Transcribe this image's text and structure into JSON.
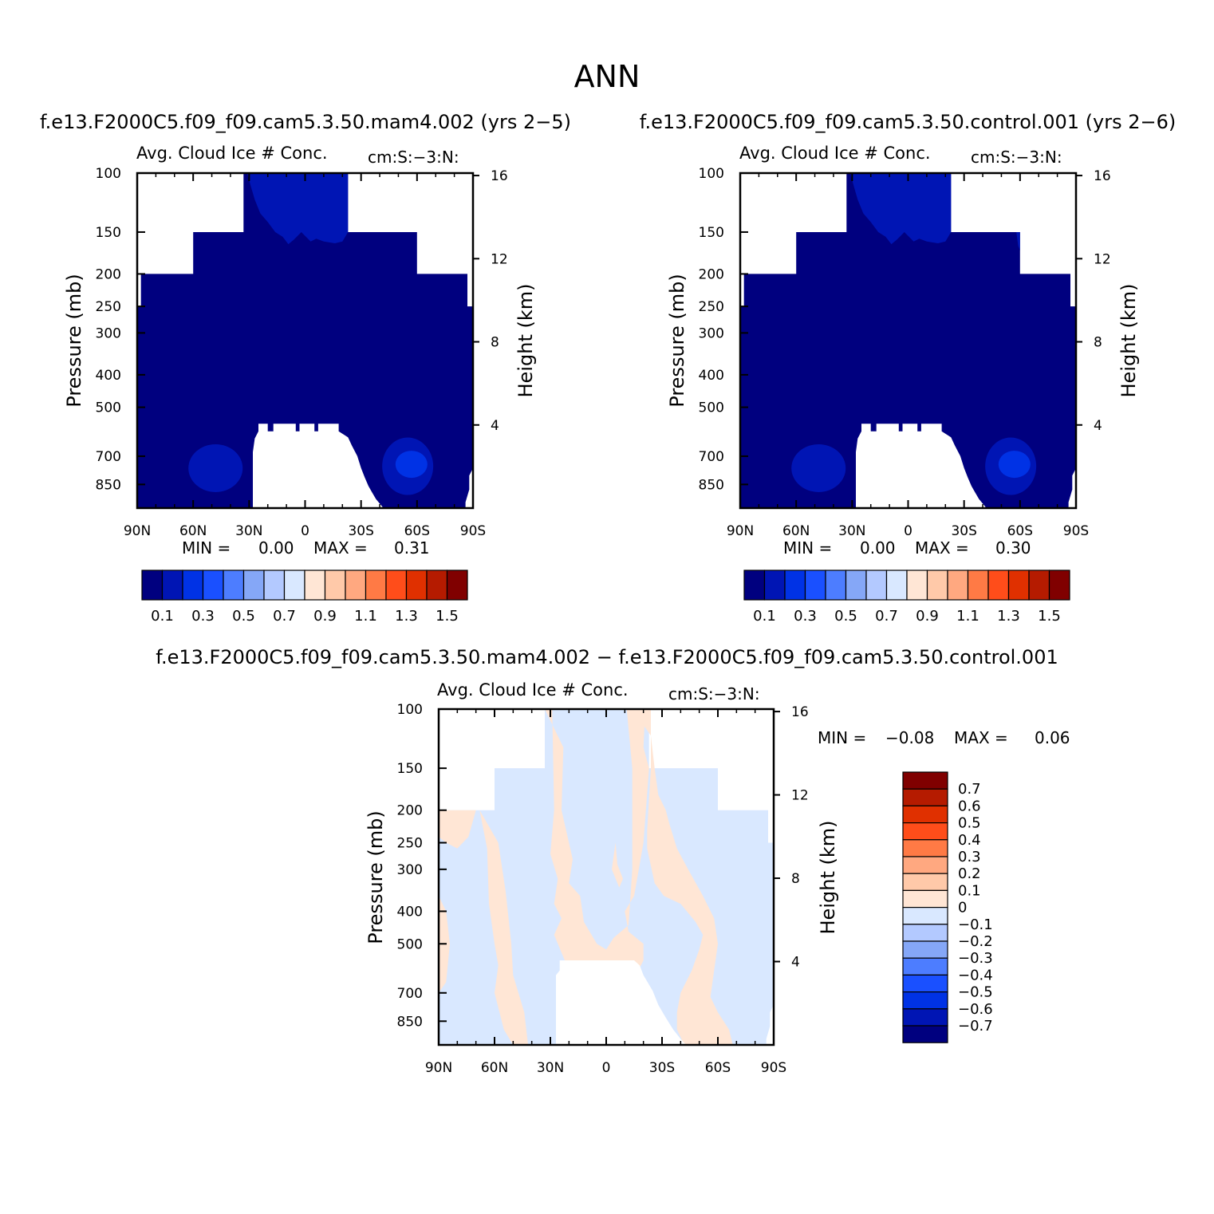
{
  "title": "ANN",
  "colors": {
    "abs_scale": [
      "#00007f",
      "#0015b4",
      "#0032e5",
      "#1a50ff",
      "#4d7dff",
      "#85a7f7",
      "#b3c9ff",
      "#d9e8ff",
      "#ffe6d5",
      "#ffc9a9",
      "#ffa880",
      "#ff7a45",
      "#ff4d1a",
      "#e03000",
      "#b51b00",
      "#800000"
    ],
    "diff_scale": [
      "#00007f",
      "#0015b4",
      "#0032e5",
      "#1a50ff",
      "#4d7dff",
      "#85a7f7",
      "#b3c9ff",
      "#d9e8ff",
      "#ffe6d5",
      "#ffc9a9",
      "#ffa880",
      "#ff7a45",
      "#ff4d1a",
      "#e03000",
      "#b51b00",
      "#800000"
    ]
  },
  "chart_data": [
    {
      "type": "heatmap",
      "case_title": "f.e13.F2000C5.f09_f09.cam5.3.50.mam4.002 (yrs 2−5)",
      "left_label": "Avg. Cloud Ice # Conc.",
      "right_label": "cm:S:−3:N:",
      "xlabel": "",
      "ylabel": "Pressure (mb)",
      "y2label": "Height (km)",
      "x_ticks": [
        "90N",
        "60N",
        "30N",
        "0",
        "30S",
        "60S",
        "90S"
      ],
      "y_ticks": [
        "100",
        "150",
        "200",
        "250",
        "300",
        "400",
        "500",
        "700",
        "850"
      ],
      "y2_ticks": [
        "16",
        "12",
        "8",
        "4"
      ],
      "ylim": [
        100,
        1000
      ],
      "y_scale": "log",
      "min_label": "MIN =",
      "min_value": "0.00",
      "max_label": "MAX =",
      "max_value": "0.31",
      "colorbar_labels": [
        "0.1",
        "0.3",
        "0.5",
        "0.7",
        "0.9",
        "1.1",
        "1.3",
        "1.5"
      ]
    },
    {
      "type": "heatmap",
      "case_title": "f.e13.F2000C5.f09_f09.cam5.3.50.control.001 (yrs 2−6)",
      "left_label": "Avg. Cloud Ice # Conc.",
      "right_label": "cm:S:−3:N:",
      "xlabel": "",
      "ylabel": "Pressure (mb)",
      "y2label": "Height (km)",
      "x_ticks": [
        "90N",
        "60N",
        "30N",
        "0",
        "30S",
        "60S",
        "90S"
      ],
      "y_ticks": [
        "100",
        "150",
        "200",
        "250",
        "300",
        "400",
        "500",
        "700",
        "850"
      ],
      "y2_ticks": [
        "16",
        "12",
        "8",
        "4"
      ],
      "ylim": [
        100,
        1000
      ],
      "y_scale": "log",
      "min_label": "MIN =",
      "min_value": "0.00",
      "max_label": "MAX =",
      "max_value": "0.30",
      "colorbar_labels": [
        "0.1",
        "0.3",
        "0.5",
        "0.7",
        "0.9",
        "1.1",
        "1.3",
        "1.5"
      ]
    },
    {
      "type": "heatmap",
      "case_title": "f.e13.F2000C5.f09_f09.cam5.3.50.mam4.002 − f.e13.F2000C5.f09_f09.cam5.3.50.control.001",
      "left_label": "Avg. Cloud Ice # Conc.",
      "right_label": "cm:S:−3:N:",
      "xlabel": "",
      "ylabel": "Pressure (mb)",
      "y2label": "Height (km)",
      "x_ticks": [
        "90N",
        "60N",
        "30N",
        "0",
        "30S",
        "60S",
        "90S"
      ],
      "y_ticks": [
        "100",
        "150",
        "200",
        "250",
        "300",
        "400",
        "500",
        "700",
        "850"
      ],
      "y2_ticks": [
        "16",
        "12",
        "8",
        "4"
      ],
      "ylim": [
        100,
        1000
      ],
      "y_scale": "log",
      "min_label": "MIN =",
      "min_value": "−0.08",
      "max_label": "MAX =",
      "max_value": "0.06",
      "colorbar_labels": [
        "0.7",
        "0.6",
        "0.5",
        "0.4",
        "0.3",
        "0.2",
        "0.1",
        "0",
        "−0.1",
        "−0.2",
        "−0.3",
        "−0.4",
        "−0.5",
        "−0.6",
        "−0.7"
      ]
    }
  ]
}
